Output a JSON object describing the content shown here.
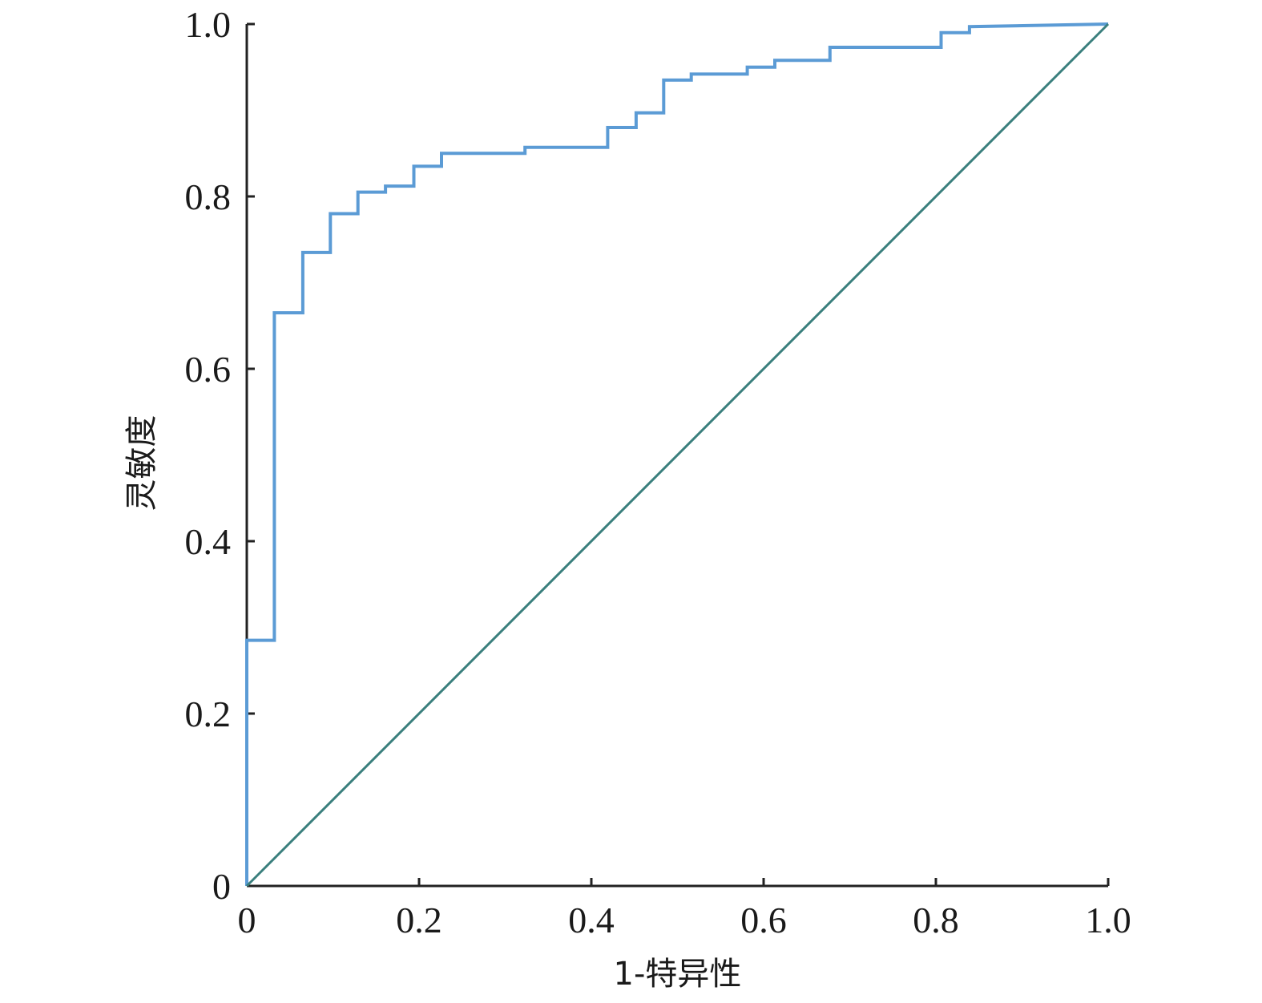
{
  "chart_data": {
    "type": "line",
    "title": "",
    "xlabel": "1-特异性",
    "ylabel": "灵敏度",
    "xlim": [
      0,
      1
    ],
    "ylim": [
      0,
      1
    ],
    "x_ticks": [
      "0",
      "0.2",
      "0.4",
      "0.6",
      "0.8",
      "1.0"
    ],
    "y_ticks": [
      "0",
      "0.2",
      "0.4",
      "0.6",
      "0.8",
      "1.0"
    ],
    "grid": false,
    "series": [
      {
        "color": "#5b9bd5",
        "step": true,
        "x": [
          0,
          0,
          0.032,
          0.032,
          0.065,
          0.065,
          0.097,
          0.097,
          0.129,
          0.129,
          0.161,
          0.161,
          0.194,
          0.194,
          0.226,
          0.226,
          0.323,
          0.323,
          0.419,
          0.419,
          0.452,
          0.452,
          0.484,
          0.484,
          0.516,
          0.516,
          0.581,
          0.581,
          0.613,
          0.613,
          0.677,
          0.677,
          0.806,
          0.806,
          0.839,
          0.839,
          1.0
        ],
        "y": [
          0,
          0.285,
          0.285,
          0.665,
          0.665,
          0.735,
          0.735,
          0.78,
          0.78,
          0.805,
          0.805,
          0.812,
          0.812,
          0.835,
          0.835,
          0.85,
          0.85,
          0.857,
          0.857,
          0.88,
          0.88,
          0.897,
          0.897,
          0.935,
          0.935,
          0.942,
          0.942,
          0.95,
          0.95,
          0.958,
          0.958,
          0.973,
          0.973,
          0.99,
          0.99,
          0.997,
          1.0
        ]
      },
      {
        "color": "#3a7f7d",
        "x": [
          0,
          1
        ],
        "y": [
          0,
          1
        ]
      }
    ]
  }
}
